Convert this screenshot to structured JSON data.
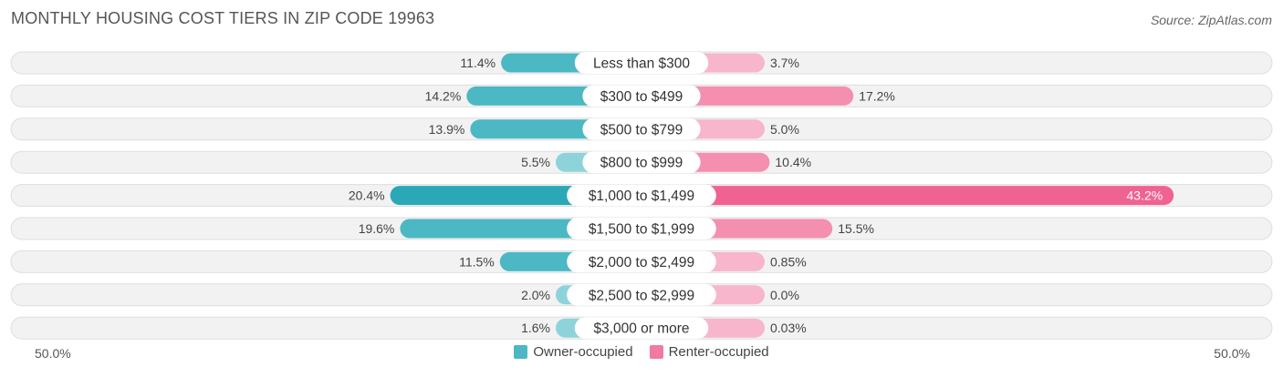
{
  "header": {
    "title": "MONTHLY HOUSING COST TIERS IN ZIP CODE 19963",
    "source": "Source: ZipAtlas.com"
  },
  "axis": {
    "left_label": "50.0%",
    "right_label": "50.0%"
  },
  "legend": [
    {
      "name": "Owner-occupied",
      "color": "#4cb8c4"
    },
    {
      "name": "Renter-occupied",
      "color": "#f07aa0"
    }
  ],
  "chart_data": {
    "type": "bar",
    "orientation": "diverging-horizontal",
    "max": 50,
    "categories": [
      "Less than $300",
      "$300 to $499",
      "$500 to $799",
      "$800 to $999",
      "$1,000 to $1,499",
      "$1,500 to $1,999",
      "$2,000 to $2,499",
      "$2,500 to $2,999",
      "$3,000 or more"
    ],
    "series": [
      {
        "name": "Owner-occupied",
        "values": [
          11.4,
          14.2,
          13.9,
          5.5,
          20.4,
          19.6,
          11.5,
          2.0,
          1.6
        ],
        "labels": [
          "11.4%",
          "14.2%",
          "13.9%",
          "5.5%",
          "20.4%",
          "19.6%",
          "11.5%",
          "2.0%",
          "1.6%"
        ]
      },
      {
        "name": "Renter-occupied",
        "values": [
          3.7,
          17.2,
          5.0,
          10.4,
          43.2,
          15.5,
          0.85,
          0.0,
          0.03
        ],
        "labels": [
          "3.7%",
          "17.2%",
          "5.0%",
          "10.4%",
          "43.2%",
          "15.5%",
          "0.85%",
          "0.0%",
          "0.03%"
        ]
      }
    ],
    "colors": {
      "owner": "#4cb8c4",
      "owner_light": "#8fd3da",
      "owner_strong": "#2aa8b6",
      "renter": "#f48fb0",
      "renter_light": "#f7b6cb",
      "renter_strong": "#f06292",
      "row_bg": "#f2f2f2",
      "row_border": "#dedede"
    }
  }
}
